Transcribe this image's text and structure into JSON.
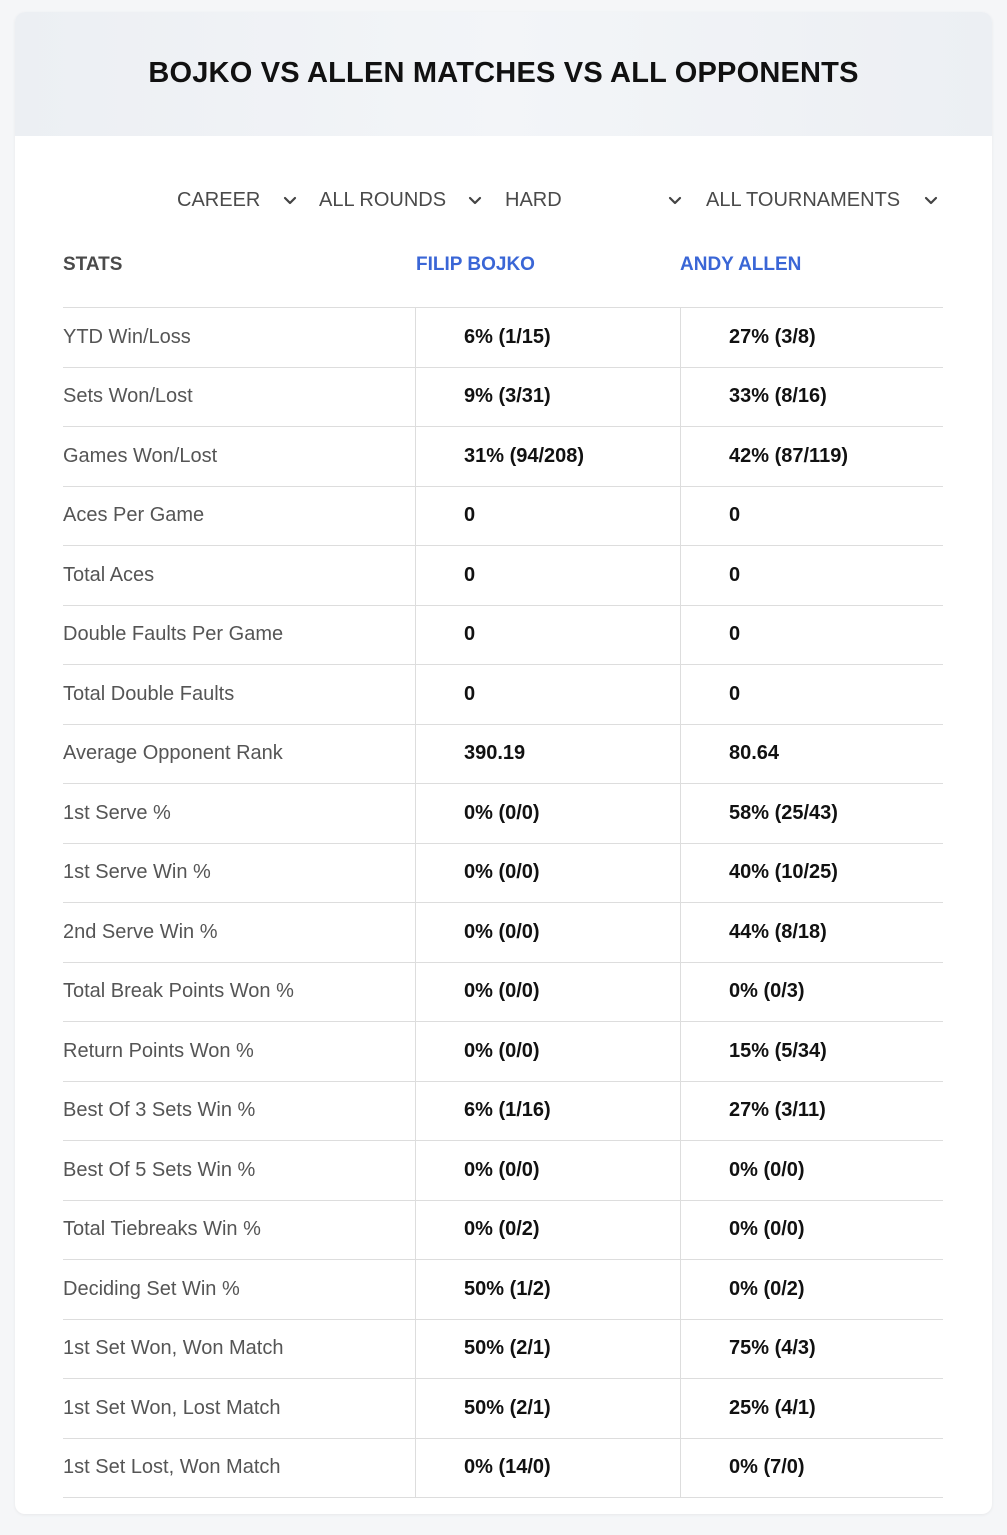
{
  "title": "BOJKO VS ALLEN MATCHES VS ALL OPPONENTS",
  "filters": [
    {
      "value": "CAREER",
      "icon": "chevron-down-icon"
    },
    {
      "value": "ALL ROUNDS",
      "icon": "chevron-down-icon"
    },
    {
      "value": "HARD",
      "icon": "chevron-down-icon"
    },
    {
      "value": "ALL TOURNAMENTS",
      "icon": "chevron-down-icon"
    }
  ],
  "table": {
    "headers": {
      "stats": "STATS",
      "player1": "FILIP BOJKO",
      "player2": "ANDY ALLEN"
    },
    "rows": [
      {
        "label": "YTD Win/Loss",
        "p1": "6% (1/15)",
        "p2": "27% (3/8)"
      },
      {
        "label": "Sets Won/Lost",
        "p1": "9% (3/31)",
        "p2": "33% (8/16)"
      },
      {
        "label": "Games Won/Lost",
        "p1": "31% (94/208)",
        "p2": "42% (87/119)"
      },
      {
        "label": "Aces Per Game",
        "p1": "0",
        "p2": "0"
      },
      {
        "label": "Total Aces",
        "p1": "0",
        "p2": "0"
      },
      {
        "label": "Double Faults Per Game",
        "p1": "0",
        "p2": "0"
      },
      {
        "label": "Total Double Faults",
        "p1": "0",
        "p2": "0"
      },
      {
        "label": "Average Opponent Rank",
        "p1": "390.19",
        "p2": "80.64"
      },
      {
        "label": "1st Serve %",
        "p1": "0% (0/0)",
        "p2": "58% (25/43)"
      },
      {
        "label": "1st Serve Win %",
        "p1": "0% (0/0)",
        "p2": "40% (10/25)"
      },
      {
        "label": "2nd Serve Win %",
        "p1": "0% (0/0)",
        "p2": "44% (8/18)"
      },
      {
        "label": "Total Break Points Won %",
        "p1": "0% (0/0)",
        "p2": "0% (0/3)"
      },
      {
        "label": "Return Points Won %",
        "p1": "0% (0/0)",
        "p2": "15% (5/34)"
      },
      {
        "label": "Best Of 3 Sets Win %",
        "p1": "6% (1/16)",
        "p2": "27% (3/11)"
      },
      {
        "label": "Best Of 5 Sets Win %",
        "p1": "0% (0/0)",
        "p2": "0% (0/0)"
      },
      {
        "label": "Total Tiebreaks Win %",
        "p1": "0% (0/2)",
        "p2": "0% (0/0)"
      },
      {
        "label": "Deciding Set Win %",
        "p1": "50% (1/2)",
        "p2": "0% (0/2)"
      },
      {
        "label": "1st Set Won, Won Match",
        "p1": "50% (2/1)",
        "p2": "75% (4/3)"
      },
      {
        "label": "1st Set Won, Lost Match",
        "p1": "50% (2/1)",
        "p2": "25% (4/1)"
      },
      {
        "label": "1st Set Lost, Won Match",
        "p1": "0% (14/0)",
        "p2": "0% (7/0)"
      }
    ]
  }
}
